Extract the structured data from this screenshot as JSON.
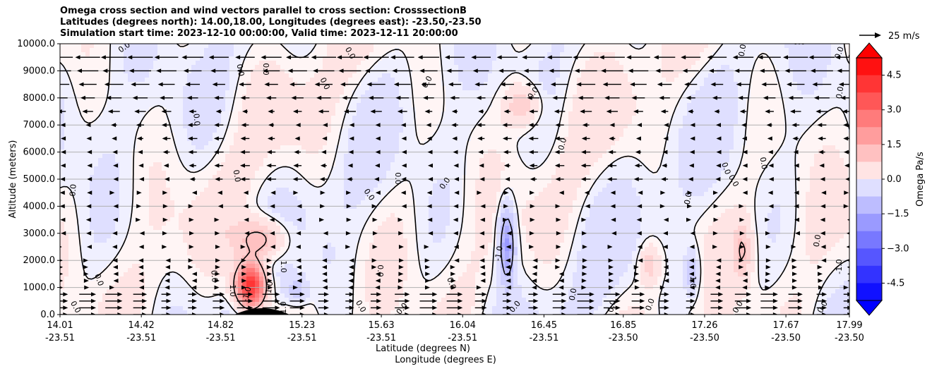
{
  "chart_data": {
    "type": "contour",
    "title_lines": [
      "Omega cross section and wind vectors parallel to cross section: CrosssectionB",
      "Latitudes (degrees north): 14.00,18.00, Longitudes (degrees east): -23.50,-23.50",
      "Simulation start time: 2023-12-10 00:00:00, Valid time: 2023-12-11 20:00:00"
    ],
    "ylabel": "Altitude (meters)",
    "xlabel_lat": "Latitude (degrees N)",
    "xlabel_lon": "Longitude (degrees E)",
    "ylim": [
      0,
      10000
    ],
    "yticks": [
      "0.0",
      "1000.0",
      "2000.0",
      "3000.0",
      "4000.0",
      "5000.0",
      "6000.0",
      "7000.0",
      "8000.0",
      "9000.0",
      "10000.0"
    ],
    "xticks_lat": [
      "14.01",
      "14.42",
      "14.82",
      "15.23",
      "15.63",
      "16.04",
      "16.45",
      "16.85",
      "17.26",
      "17.67",
      "17.99"
    ],
    "xticks_lon": [
      "-23.51",
      "-23.51",
      "-23.51",
      "-23.51",
      "-23.51",
      "-23.51",
      "-23.51",
      "-23.50",
      "-23.50",
      "-23.50",
      "-23.50"
    ],
    "grid": "horizontal",
    "colorbar": {
      "label": "Omega Pa/s",
      "range": [
        -5.25,
        5.25
      ],
      "ticks": [
        "-4.5",
        "−3.0",
        "−1.5",
        "0.0",
        "1.5",
        "3.0",
        "4.5"
      ],
      "tick_values": [
        -4.5,
        -3.0,
        -1.5,
        0.0,
        1.5,
        3.0,
        4.5
      ],
      "colormap": "bwr",
      "neg_color": "#0000ff",
      "pos_color": "#ff0000"
    },
    "reference_vector": "25 m/s",
    "contour_labels": [
      "0.0",
      "-1.0",
      "1.0"
    ],
    "features": [
      {
        "name": "positive-omega-core",
        "lat": 14.95,
        "alt": 900,
        "value": 4.0
      },
      {
        "name": "negative-omega-core",
        "lat": 16.27,
        "alt": 2500,
        "value": -1.8
      },
      {
        "name": "negative-omega-band",
        "lat": 17.45,
        "alt": 1600,
        "value": -1.2
      },
      {
        "name": "terrain-mound",
        "lat": 15.0,
        "alt": 150
      }
    ]
  }
}
